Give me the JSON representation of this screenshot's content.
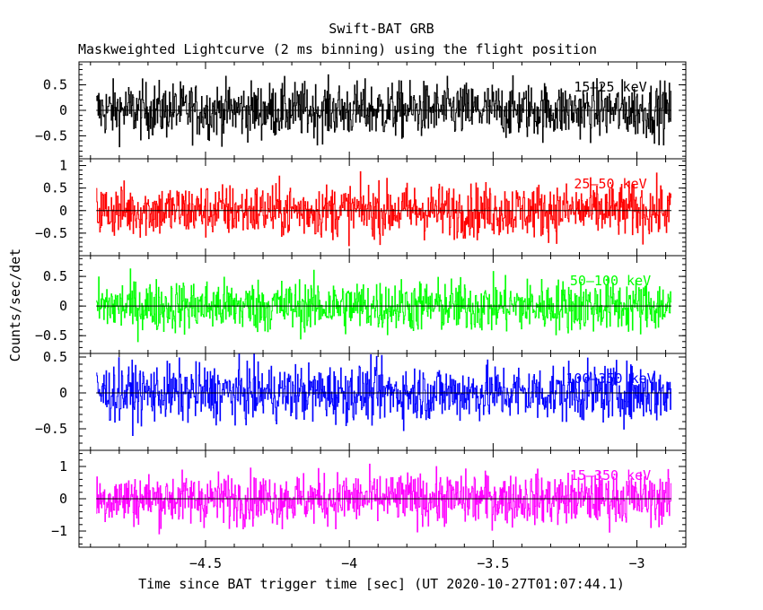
{
  "chart_data": {
    "type": "line",
    "title": "Swift-BAT GRB",
    "subtitle": "Maskweighted Lightcurve (2 ms binning) using the flight position",
    "xlabel": "Time since BAT trigger time [sec] (UT 2020-10-27T01:07:44.1)",
    "ylabel": "Counts/sec/det",
    "xlim": [
      -4.94,
      -2.83
    ],
    "data_range": [
      -4.88,
      -2.88
    ],
    "bin_width": 0.002,
    "x_ticks": [
      -4.5,
      -4,
      -3.5,
      -3
    ],
    "x_tick_labels": [
      "−4.5",
      "−4",
      "−3.5",
      "−3"
    ],
    "grid": false,
    "panels": [
      {
        "name": "15–25 keV",
        "color": "#000000",
        "ylim": [
          -0.95,
          0.95
        ],
        "y_ticks": [
          -0.5,
          0,
          0.5
        ],
        "y_tick_labels": [
          "−0.5",
          "0",
          "0.5"
        ],
        "amplitude": 0.55
      },
      {
        "name": "25–50 keV",
        "color": "#ff0000",
        "ylim": [
          -1.0,
          1.15
        ],
        "y_ticks": [
          -0.5,
          0,
          0.5,
          1
        ],
        "y_tick_labels": [
          "−0.5",
          "0",
          "0.5",
          "1"
        ],
        "amplitude": 0.6
      },
      {
        "name": "50–100 keV",
        "color": "#00ff00",
        "ylim": [
          -0.8,
          0.85
        ],
        "y_ticks": [
          -0.5,
          0,
          0.5
        ],
        "y_tick_labels": [
          "−0.5",
          "0",
          "0.5"
        ],
        "amplitude": 0.45
      },
      {
        "name": "100–350 keV",
        "color": "#0000ff",
        "ylim": [
          -0.8,
          0.55
        ],
        "y_ticks": [
          -0.5,
          0,
          0.5
        ],
        "y_tick_labels": [
          "−0.5",
          "0",
          "0.5"
        ],
        "amplitude": 0.4
      },
      {
        "name": "15–350 keV",
        "color": "#ff00ff",
        "ylim": [
          -1.5,
          1.5
        ],
        "y_ticks": [
          -1,
          0,
          1
        ],
        "y_tick_labels": [
          "−1",
          "0",
          "1"
        ],
        "amplitude": 0.8
      }
    ]
  }
}
